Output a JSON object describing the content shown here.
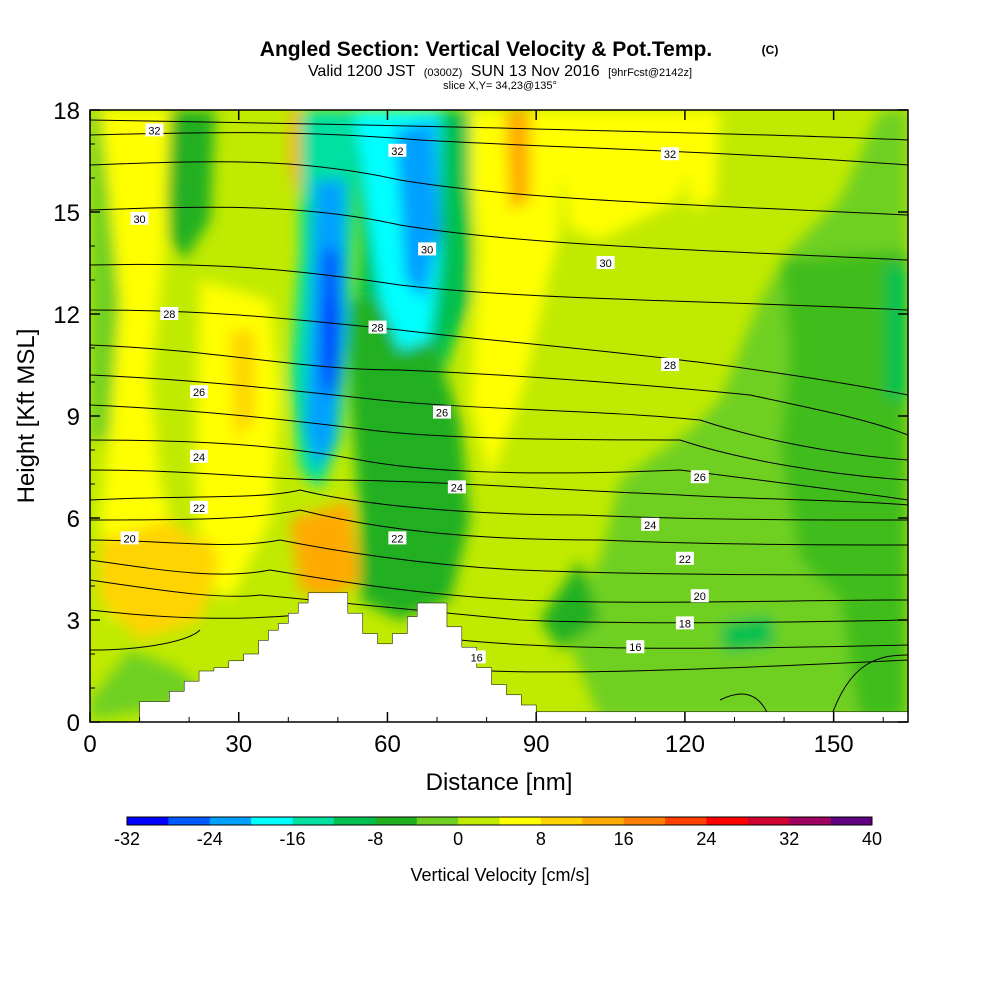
{
  "header": {
    "title": "Angled Section: Vertical Velocity & Pot.Temp.",
    "title_mark": "(C)",
    "subtitle_prefix": "Valid 1200 JST",
    "subtitle_utc": "(0300Z)",
    "subtitle_date": "SUN 13 Nov 2016",
    "subtitle_fcst": "[9hrFcst@2142z]",
    "slice": "slice X,Y= 34,23@135°"
  },
  "chart_data": {
    "type": "heatmap",
    "xlabel": "Distance [nm]",
    "ylabel": "Height [Kft MSL]",
    "xlim": [
      0,
      165
    ],
    "ylim": [
      0,
      18
    ],
    "xticks": [
      "0",
      "30",
      "60",
      "90",
      "120",
      "150"
    ],
    "yticks": [
      "0",
      "3",
      "6",
      "9",
      "12",
      "15",
      "18"
    ],
    "colorbar": {
      "label": "Vertical Velocity [cm/s]",
      "ticks": [
        "-32",
        "-24",
        "-16",
        "-8",
        "0",
        "8",
        "16",
        "24",
        "32",
        "40"
      ],
      "colors": [
        "#0000ff",
        "#005aff",
        "#00a0ff",
        "#00ffff",
        "#00e0a0",
        "#00c050",
        "#20b020",
        "#70d020",
        "#c0ea00",
        "#ffff00",
        "#ffd400",
        "#ffaa00",
        "#ff8000",
        "#ff4000",
        "#ff0000",
        "#d00030",
        "#a00060",
        "#600080"
      ]
    },
    "terrain_height_kft": {
      "x": [
        0,
        10,
        16,
        19,
        22,
        25,
        28,
        31,
        34,
        36,
        38,
        40,
        42,
        44,
        47,
        52,
        55,
        58,
        61,
        64,
        66,
        69,
        72,
        75,
        78,
        81,
        84,
        87,
        90,
        165
      ],
      "h": [
        0,
        0.6,
        0.9,
        1.2,
        1.5,
        1.6,
        1.8,
        2.0,
        2.4,
        2.7,
        2.9,
        3.2,
        3.5,
        3.8,
        3.8,
        3.2,
        2.6,
        2.3,
        2.6,
        3.1,
        3.5,
        3.5,
        2.8,
        2.2,
        1.6,
        1.1,
        0.8,
        0.5,
        0.3,
        0.3
      ]
    },
    "contour_labels": [
      {
        "text": "32",
        "x": 13,
        "y": 17.4
      },
      {
        "text": "32",
        "x": 62,
        "y": 16.8
      },
      {
        "text": "32",
        "x": 117,
        "y": 16.7
      },
      {
        "text": "30",
        "x": 10,
        "y": 14.8
      },
      {
        "text": "30",
        "x": 68,
        "y": 13.9
      },
      {
        "text": "30",
        "x": 104,
        "y": 13.5
      },
      {
        "text": "28",
        "x": 16,
        "y": 12
      },
      {
        "text": "28",
        "x": 58,
        "y": 11.6
      },
      {
        "text": "28",
        "x": 117,
        "y": 10.5
      },
      {
        "text": "26",
        "x": 22,
        "y": 9.7
      },
      {
        "text": "26",
        "x": 71,
        "y": 9.1
      },
      {
        "text": "26",
        "x": 123,
        "y": 7.2
      },
      {
        "text": "24",
        "x": 22,
        "y": 7.8
      },
      {
        "text": "24",
        "x": 74,
        "y": 6.9
      },
      {
        "text": "24",
        "x": 113,
        "y": 5.8
      },
      {
        "text": "22",
        "x": 22,
        "y": 6.3
      },
      {
        "text": "22",
        "x": 62,
        "y": 5.4
      },
      {
        "text": "22",
        "x": 120,
        "y": 4.8
      },
      {
        "text": "20",
        "x": 8,
        "y": 5.4
      },
      {
        "text": "20",
        "x": 123,
        "y": 3.7
      },
      {
        "text": "18",
        "x": 120,
        "y": 2.9
      },
      {
        "text": "16",
        "x": 78,
        "y": 1.9
      },
      {
        "text": "16",
        "x": 110,
        "y": 2.2
      }
    ],
    "grid": false
  }
}
